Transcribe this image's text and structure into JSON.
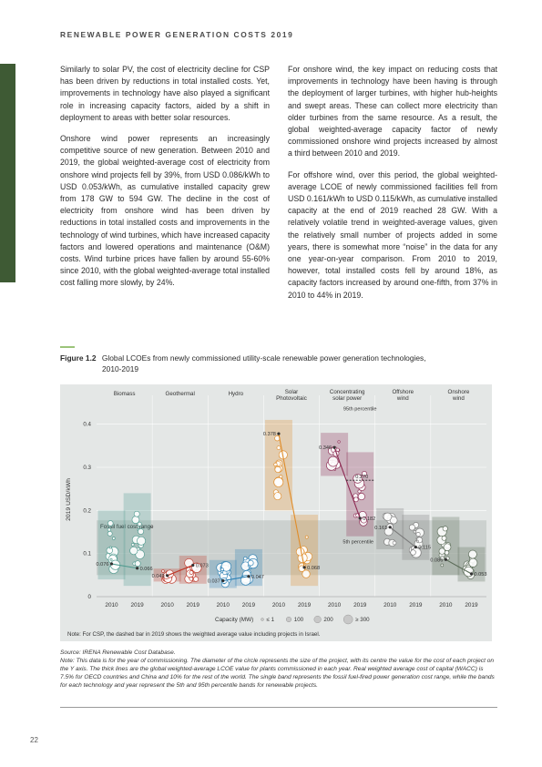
{
  "header": {
    "title": "RENEWABLE POWER GENERATION COSTS 2019"
  },
  "body": {
    "left_paragraphs": [
      "Similarly to solar PV, the cost of electricity decline for CSP has been driven by reductions in total installed costs. Yet, improvements in technology have also played a significant role in increasing capacity factors, aided by a shift in deployment to areas with better solar resources.",
      "Onshore wind power represents an increasingly competitive source of new generation. Between 2010 and 2019, the global weighted-average cost of electricity from onshore wind projects fell by 39%, from USD 0.086/kWh to USD 0.053/kWh, as cumulative installed capacity grew from 178 GW to 594 GW. The decline in the cost of electricity from onshore wind has been driven by reductions in total installed costs and improvements in the technology of wind turbines, which have increased capacity factors and lowered operations and maintenance (O&M) costs. Wind turbine prices have fallen by around 55-60% since 2010, with the global weighted-average total installed cost falling more slowly, by 24%."
    ],
    "right_paragraphs": [
      "For onshore wind, the key impact on reducing costs that improvements in technology have been having is through the deployment of larger turbines, with higher hub-heights and swept areas. These can collect more electricity than older turbines from the same resource. As a result, the global weighted-average capacity factor of newly commissioned onshore wind projects increased by almost a third between 2010 and 2019.",
      "For offshore wind, over this period, the global weighted-average LCOE of newly commissioned facilities fell from USD 0.161/kWh to USD 0.115/kWh, as cumulative installed capacity at the end of 2019 reached 28 GW. With a relatively volatile trend in weighted-average values, given the relatively small number of projects added in some years, there is somewhat more “noise” in the data for any one year-on-year comparison. From 2010 to 2019, however, total installed costs fell by around 18%, as capacity factors increased by around one-fifth, from 37% in 2010 to 44% in 2019."
    ]
  },
  "figure": {
    "label": "Figure 1.2",
    "caption_line1": "Global LCOEs from newly commissioned utility-scale renewable power generation technologies,",
    "caption_line2": "2010-2019"
  },
  "chart_data": {
    "type": "scatter",
    "ylabel": "2019 USD/kWh",
    "ylim": [
      0,
      0.45
    ],
    "yticks": [
      "0",
      "0.1",
      "0.2",
      "0.3",
      "0.4"
    ],
    "grid": true,
    "technologies": [
      {
        "name": "Biomass",
        "v2010": 0.076,
        "v2019": 0.066,
        "band2010": [
          0.04,
          0.2
        ],
        "band2019": [
          0.025,
          0.24
        ],
        "color": "#4f9a8f",
        "lbl2010": "0.076",
        "lbl2019": "0.066"
      },
      {
        "name": "Geothermal",
        "v2010": 0.049,
        "v2019": 0.073,
        "band2010": [
          0.035,
          0.065
        ],
        "band2019": [
          0.03,
          0.095
        ],
        "color": "#c0392b",
        "lbl2010": "0.049",
        "lbl2019": "0.073"
      },
      {
        "name": "Hydro",
        "v2010": 0.037,
        "v2019": 0.047,
        "band2010": [
          0.02,
          0.085
        ],
        "band2019": [
          0.025,
          0.11
        ],
        "color": "#2a7fb3",
        "lbl2010": "0.037",
        "lbl2019": "0.047"
      },
      {
        "name": "Solar Photovoltaic",
        "v2010": 0.378,
        "v2019": 0.068,
        "band2010": [
          0.2,
          0.41
        ],
        "band2019": [
          0.025,
          0.19
        ],
        "color": "#e08c28",
        "lbl2010": "0.378",
        "lbl2019": "0.068"
      },
      {
        "name": "Concentrating solar power",
        "v2010": 0.346,
        "v2019": 0.182,
        "band2010": [
          0.28,
          0.38
        ],
        "band2019": [
          0.14,
          0.335
        ],
        "color": "#8c2a52",
        "lbl2010": "0.346",
        "lbl2019": "0.182"
      },
      {
        "name": "Offshore wind",
        "v2010": 0.161,
        "v2019": 0.115,
        "band2010": [
          0.11,
          0.205
        ],
        "band2019": [
          0.085,
          0.19
        ],
        "color": "#7b7b7b",
        "lbl2010": "0.161",
        "lbl2019": "0.115"
      },
      {
        "name": "Onshore wind",
        "v2010": 0.086,
        "v2019": 0.053,
        "band2010": [
          0.05,
          0.185
        ],
        "band2019": [
          0.035,
          0.115
        ],
        "color": "#5a6b57",
        "lbl2010": "0.086",
        "lbl2019": "0.053"
      }
    ],
    "tech_labels": [
      [
        "Biomass"
      ],
      [
        "Geothermal"
      ],
      [
        "Hydro"
      ],
      [
        "Solar",
        "Photovoltaic"
      ],
      [
        "Concentrating",
        "solar power"
      ],
      [
        "Offshore",
        "wind"
      ],
      [
        "Onshore",
        "wind"
      ]
    ],
    "xtick_labels": [
      "2010",
      "2019"
    ],
    "fossil_band": [
      0.05,
      0.177
    ],
    "fossil_label": "Fossil fuel cost range",
    "csp_dashed_2019": 0.27,
    "csp_dashed_label": "0.270",
    "p95_label": "95th percentile",
    "p5_label": "5th percentile",
    "legend": {
      "title": "Capacity (MW)",
      "items": [
        "≤ 1",
        "100",
        "200",
        "≥ 300"
      ]
    },
    "note": "Note: For CSP, the dashed bar in 2019 shows the weighted average value including projects in Israel."
  },
  "source": {
    "source_line": "Source: IRENA Renewable Cost Database.",
    "note_label": "Note:",
    "note_text": "This data is for the year of commissioning. The diameter of the circle represents the size of the project, with its centre the value for the cost of each project on the Y axis. The thick lines are the global weighted-average LCOE value for plants commissioned in each year. Real weighted average cost of capital (WACC) is 7.5% for OECD countries and China and 10% for the rest of the world. The single band represents the fossil fuel-fired power generation cost range, while the bands for each technology and year represent the 5th and 95th percentile bands for renewable projects."
  },
  "page_number": "22"
}
